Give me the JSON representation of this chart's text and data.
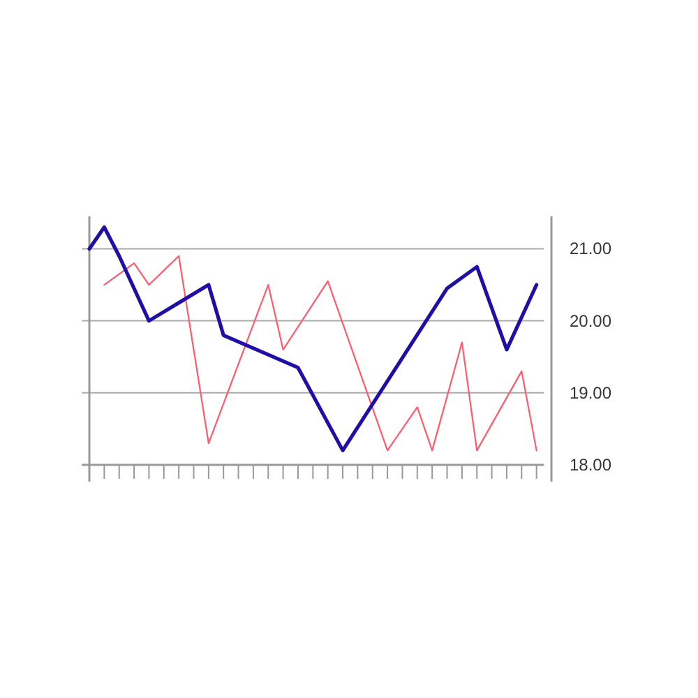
{
  "chart_data": {
    "type": "line",
    "categories": [
      null,
      null,
      null,
      null,
      null,
      null,
      null,
      null,
      null,
      null,
      null,
      null,
      null,
      null,
      null,
      null,
      null,
      null,
      null,
      null,
      null,
      null,
      null,
      null,
      null,
      null,
      null,
      null,
      null,
      null,
      null
    ],
    "ylim": [
      18,
      21.45
    ],
    "yticks": [
      {
        "value": 18,
        "label": "18.00"
      },
      {
        "value": 19,
        "label": "19.00"
      },
      {
        "value": 20,
        "label": "20.00"
      },
      {
        "value": 21,
        "label": "21.00"
      }
    ],
    "grid": "y",
    "marker": "none",
    "line_style": "solid",
    "series": [
      {
        "color": "#ff5a6e",
        "values": [
          null,
          20.5,
          null,
          20.8,
          20.5,
          null,
          20.9,
          null,
          18.3,
          null,
          null,
          null,
          20.5,
          19.6,
          null,
          null,
          20.55,
          null,
          null,
          null,
          18.2,
          null,
          18.8,
          18.2,
          null,
          19.7,
          18.2,
          null,
          null,
          19.3,
          18.2
        ]
      },
      {
        "color": "#1f0fa6",
        "values": [
          21,
          21.3,
          20.9,
          null,
          20,
          null,
          null,
          null,
          20.5,
          19.8,
          null,
          null,
          null,
          null,
          19.35,
          null,
          null,
          18.2,
          null,
          null,
          null,
          null,
          null,
          null,
          20.45,
          null,
          20.75,
          null,
          19.6,
          null,
          20.5
        ]
      }
    ]
  }
}
